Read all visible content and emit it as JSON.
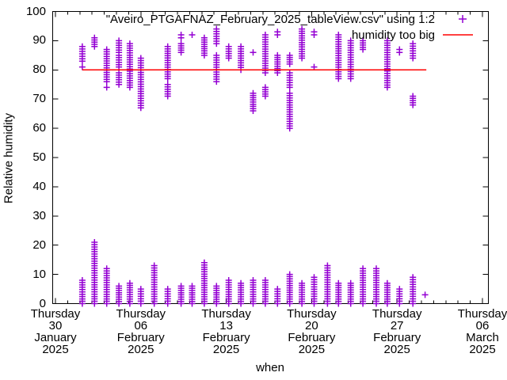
{
  "chart_data": {
    "type": "scatter",
    "title": "",
    "xlabel": "when",
    "ylabel": "Relative humidity",
    "grid": false,
    "legend_position": "top-right-inside",
    "y_axis": {
      "min": 0,
      "max": 100,
      "tick_step": 10,
      "ticks": [
        0,
        10,
        20,
        30,
        40,
        50,
        60,
        70,
        80,
        90,
        100
      ]
    },
    "x_axis": {
      "unit": "days since 2025-01-30",
      "range_days": [
        -0.3,
        35.5
      ],
      "minor_tick_days": 1,
      "ticks": [
        {
          "d": 0,
          "lines": [
            "Thursday",
            "30",
            "January",
            "2025"
          ]
        },
        {
          "d": 7,
          "lines": [
            "Thursday",
            "06",
            "February",
            "2025"
          ]
        },
        {
          "d": 14,
          "lines": [
            "Thursday",
            "13",
            "February",
            "2025"
          ]
        },
        {
          "d": 21,
          "lines": [
            "Thursday",
            "20",
            "February",
            "2025"
          ]
        },
        {
          "d": 28,
          "lines": [
            "Thursday",
            "27",
            "February",
            "2025"
          ]
        },
        {
          "d": 35,
          "lines": [
            "Thursday",
            "06",
            "March",
            "2025"
          ]
        }
      ]
    },
    "series": [
      {
        "name": "\"Aveiro_PTGAFNAZ_February_2025_tableView.csv\" using 1:2",
        "marker": "+",
        "color": "#9400d3",
        "run_step": 0.8,
        "days": [
          {
            "date": "2025-02-01",
            "d": 2.2,
            "high": [
              [
                81,
                81
              ],
              [
                83,
                88
              ]
            ],
            "low": [
              [
                0,
                8
              ]
            ]
          },
          {
            "date": "2025-02-02",
            "d": 3.2,
            "high": [
              [
                88,
                91
              ]
            ],
            "low": [
              [
                0,
                21
              ]
            ]
          },
          {
            "date": "2025-02-03",
            "d": 4.2,
            "high": [
              [
                74,
                74
              ],
              [
                76,
                87
              ]
            ],
            "low": [
              [
                0,
                12
              ]
            ]
          },
          {
            "date": "2025-02-04",
            "d": 5.2,
            "high": [
              [
                75,
                79
              ],
              [
                81,
                85
              ],
              [
                86,
                90
              ]
            ],
            "low": [
              [
                0,
                6
              ]
            ]
          },
          {
            "date": "2025-02-05",
            "d": 6.1,
            "high": [
              [
                74,
                89
              ]
            ],
            "low": [
              [
                0,
                7
              ]
            ]
          },
          {
            "date": "2025-02-06",
            "d": 7.0,
            "high": [
              [
                67,
                84
              ]
            ],
            "low": [
              [
                0,
                5
              ]
            ]
          },
          {
            "date": "2025-02-07",
            "d": 8.1,
            "high": [],
            "low": [
              [
                0,
                13
              ]
            ]
          },
          {
            "date": "2025-02-08",
            "d": 9.2,
            "high": [
              [
                71,
                75
              ],
              [
                77,
                88
              ]
            ],
            "low": [
              [
                0,
                5
              ]
            ]
          },
          {
            "date": "2025-02-09",
            "d": 10.3,
            "high": [
              [
                86,
                89
              ],
              [
                91,
                92
              ]
            ],
            "low": [
              [
                0,
                6
              ]
            ]
          },
          {
            "date": "2025-02-10",
            "d": 11.2,
            "high": [
              [
                92,
                92
              ]
            ],
            "low": [
              [
                0,
                6
              ]
            ]
          },
          {
            "date": "2025-02-11",
            "d": 12.2,
            "high": [
              [
                85,
                91
              ]
            ],
            "low": [
              [
                0,
                14
              ]
            ]
          },
          {
            "date": "2025-02-12",
            "d": 13.2,
            "high": [
              [
                76,
                85
              ],
              [
                89,
                94
              ]
            ],
            "low": [
              [
                0,
                6
              ]
            ]
          },
          {
            "date": "2025-02-13",
            "d": 14.2,
            "high": [
              [
                84,
                88
              ]
            ],
            "low": [
              [
                0,
                8
              ]
            ]
          },
          {
            "date": "2025-02-14",
            "d": 15.2,
            "high": [
              [
                80,
                88
              ]
            ],
            "low": [
              [
                0,
                7
              ]
            ]
          },
          {
            "date": "2025-02-15",
            "d": 16.2,
            "high": [
              [
                66,
                72
              ],
              [
                86,
                86
              ]
            ],
            "low": [
              [
                0,
                8
              ]
            ]
          },
          {
            "date": "2025-02-16",
            "d": 17.2,
            "high": [
              [
                71,
                74
              ],
              [
                79,
                92
              ]
            ],
            "low": [
              [
                0,
                8
              ]
            ]
          },
          {
            "date": "2025-02-17",
            "d": 18.2,
            "high": [
              [
                79,
                85
              ],
              [
                92,
                93
              ]
            ],
            "low": [
              [
                0,
                5
              ]
            ]
          },
          {
            "date": "2025-02-18",
            "d": 19.2,
            "high": [
              [
                60,
                72
              ],
              [
                74,
                79
              ],
              [
                82,
                85
              ]
            ],
            "low": [
              [
                0,
                10
              ]
            ]
          },
          {
            "date": "2025-02-19",
            "d": 20.2,
            "high": [
              [
                84,
                94
              ]
            ],
            "low": [
              [
                0,
                7
              ]
            ]
          },
          {
            "date": "2025-02-20",
            "d": 21.2,
            "high": [
              [
                81,
                81
              ],
              [
                92,
                93
              ]
            ],
            "low": [
              [
                0,
                9
              ]
            ]
          },
          {
            "date": "2025-02-21",
            "d": 22.3,
            "high": [],
            "low": [
              [
                0,
                13
              ]
            ]
          },
          {
            "date": "2025-02-22",
            "d": 23.2,
            "high": [
              [
                77,
                92
              ]
            ],
            "low": [
              [
                0,
                7
              ]
            ]
          },
          {
            "date": "2025-02-23",
            "d": 24.2,
            "high": [
              [
                77,
                90
              ]
            ],
            "low": [
              [
                0,
                7
              ]
            ]
          },
          {
            "date": "2025-02-24",
            "d": 25.2,
            "high": [
              [
                87,
                90
              ]
            ],
            "low": [
              [
                0,
                12
              ]
            ]
          },
          {
            "date": "2025-02-25",
            "d": 26.3,
            "high": [],
            "low": [
              [
                0,
                12
              ]
            ]
          },
          {
            "date": "2025-02-26",
            "d": 27.2,
            "high": [
              [
                74,
                90
              ]
            ],
            "low": [
              [
                0,
                7
              ]
            ]
          },
          {
            "date": "2025-02-27",
            "d": 28.2,
            "high": [
              [
                86,
                87
              ]
            ],
            "low": [
              [
                0,
                5
              ]
            ]
          },
          {
            "date": "2025-02-28",
            "d": 29.3,
            "high": [
              [
                68,
                71
              ],
              [
                84,
                89
              ]
            ],
            "low": [
              [
                0,
                9
              ]
            ]
          },
          {
            "date": "2025-03-01",
            "d": 30.3,
            "high": [],
            "low": [
              [
                3,
                3
              ]
            ]
          }
        ]
      },
      {
        "name": "humidity too big",
        "style": "line",
        "color": "#ff0000",
        "y": 80,
        "x_start_day": 2.2,
        "x_end_day": 30.4
      }
    ]
  }
}
